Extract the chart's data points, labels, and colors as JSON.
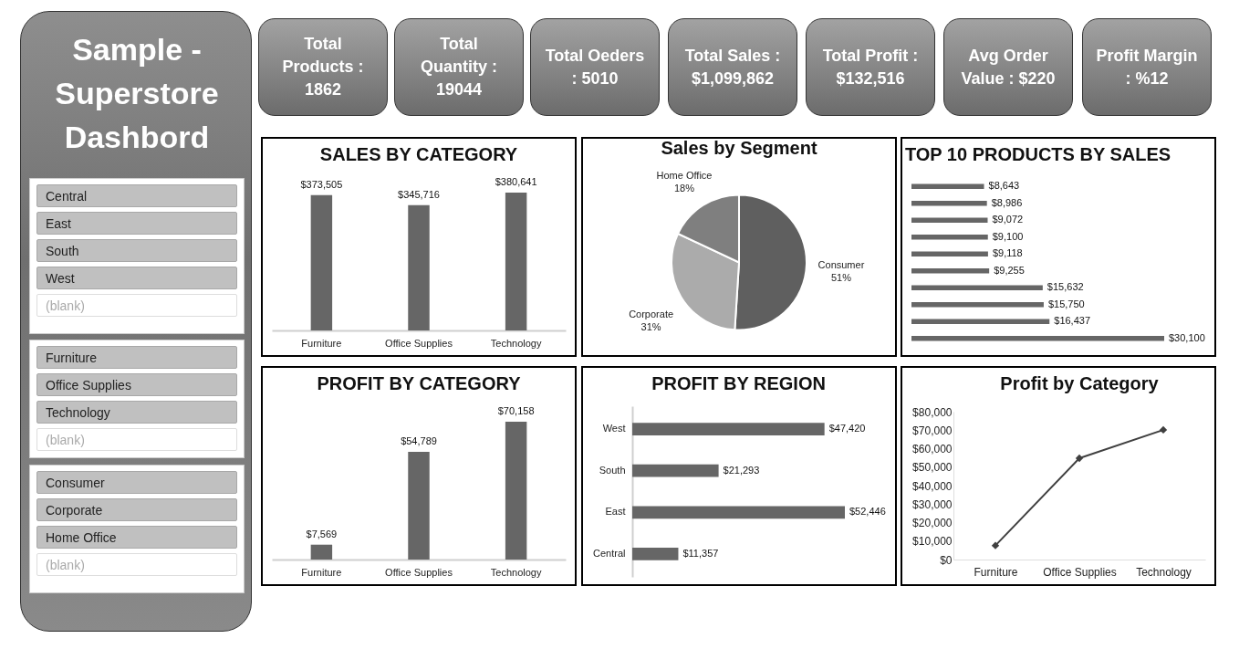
{
  "chart_data": [
    {
      "type": "other",
      "title": "Sample - Superstore Dashbord"
    },
    {
      "type": "other",
      "annotations": [
        "Central",
        "East",
        "South",
        "West",
        "(blank)"
      ]
    },
    {
      "type": "other",
      "annotations": [
        "Furniture",
        "Office Supplies",
        "Technology",
        "(blank)"
      ]
    },
    {
      "type": "other",
      "annotations": [
        "Consumer",
        "Corporate",
        "Home Office",
        "(blank)"
      ]
    },
    {
      "type": "other",
      "annotations": [
        "Total Products : 1862",
        "Total Quantity : 19044",
        "Total Oeders : 5010",
        "Total Sales : $1,099,862",
        "Total Profit : $132,516",
        "Avg Order Value : $220",
        "Profit Margin : %12"
      ]
    },
    {
      "type": "bar",
      "title": "SALES BY CATEGORY",
      "categories": [
        "Furniture",
        "Office Supplies",
        "Technology"
      ],
      "values": [
        373505,
        345716,
        380641
      ],
      "color": "#666666",
      "value_labels": [
        "$373,505",
        "$345,716",
        "$380,641"
      ],
      "tick_labels": "x"
    },
    {
      "type": "pie",
      "title": "Sales by Segment",
      "categories": [
        "Consumer",
        "Corporate",
        "Home Office"
      ],
      "values": [
        51,
        31,
        18
      ],
      "colors": [
        "#5f5f5f",
        "#ababab",
        "#7f7f7f"
      ],
      "value_labels": [
        "51%",
        "31%",
        "18%"
      ]
    },
    {
      "type": "bar",
      "orientation": "horizontal",
      "title": "TOP 10 PRODUCTS BY SALES",
      "categories": [
        null,
        null,
        null,
        null,
        null,
        null,
        null,
        null,
        null,
        null
      ],
      "values": [
        8643,
        8986,
        9072,
        9100,
        9118,
        9255,
        15632,
        15750,
        16437,
        30100
      ],
      "color": "#666666",
      "value_labels": [
        "$8,643",
        "$8,986",
        "$9,072",
        "$9,100",
        "$9,118",
        "$9,255",
        "$15,632",
        "$15,750",
        "$16,437",
        "$30,100"
      ],
      "tick_labels": false
    },
    {
      "type": "bar",
      "title": "PROFIT BY CATEGORY",
      "categories": [
        "Furniture",
        "Office Supplies",
        "Technology"
      ],
      "values": [
        7569,
        54789,
        70158
      ],
      "color": "#666666",
      "value_labels": [
        "$7,569",
        "$54,789",
        "$70,158"
      ],
      "tick_labels": "x"
    },
    {
      "type": "bar",
      "orientation": "horizontal",
      "title": "PROFIT BY REGION",
      "categories": [
        "West",
        "South",
        "East",
        "Central"
      ],
      "values": [
        47420,
        21293,
        52446,
        11357
      ],
      "color": "#666666",
      "value_labels": [
        "$47,420",
        "$21,293",
        "$52,446",
        "$11,357"
      ],
      "tick_labels": "y"
    },
    {
      "type": "line",
      "title": "Profit by Category",
      "categories": [
        "Furniture",
        "Office Supplies",
        "Technology"
      ],
      "values": [
        7569,
        54789,
        70158
      ],
      "color": "#404040",
      "marker": "diamond",
      "line_style": "solid",
      "ylim": [
        0,
        80000
      ],
      "yticks": [
        {
          "value": 0,
          "label": "$0"
        },
        {
          "value": 10000,
          "label": "$10,000"
        },
        {
          "value": 20000,
          "label": "$20,000"
        },
        {
          "value": 30000,
          "label": "$30,000"
        },
        {
          "value": 40000,
          "label": "$40,000"
        },
        {
          "value": 50000,
          "label": "$50,000"
        },
        {
          "value": 60000,
          "label": "$60,000"
        },
        {
          "value": 70000,
          "label": "$70,000"
        },
        {
          "value": 80000,
          "label": "$80,000"
        }
      ],
      "grid": false
    }
  ]
}
